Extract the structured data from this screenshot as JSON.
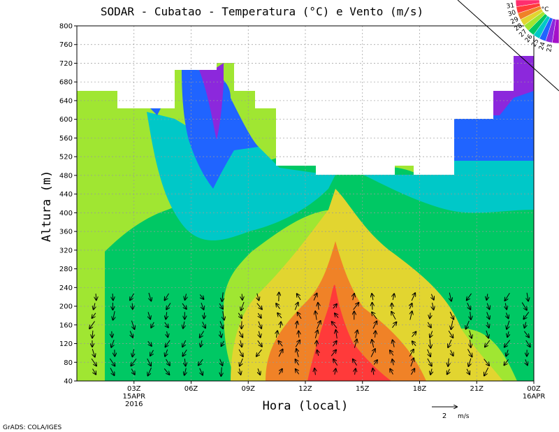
{
  "chart_data": {
    "type": "heatmap",
    "title": "SODAR - Cubatao - Temperatura (°C) e Vento (m/s)",
    "xlabel": "Hora (local)",
    "ylabel": "Altura (m)",
    "ylim": [
      40,
      800
    ],
    "xlim_hours": [
      0,
      24
    ],
    "y_ticks": [
      40,
      80,
      120,
      160,
      200,
      240,
      280,
      320,
      360,
      400,
      440,
      480,
      520,
      560,
      600,
      640,
      680,
      720,
      760,
      800
    ],
    "x_ticks": [
      {
        "hour": 3,
        "label": "03Z",
        "sub1": "15APR",
        "sub2": "2016"
      },
      {
        "hour": 6,
        "label": "06Z"
      },
      {
        "hour": 9,
        "label": "09Z"
      },
      {
        "hour": 12,
        "label": "12Z"
      },
      {
        "hour": 15,
        "label": "15Z"
      },
      {
        "hour": 18,
        "label": "18Z"
      },
      {
        "hour": 21,
        "label": "21Z"
      },
      {
        "hour": 24,
        "label": "00Z",
        "sub1": "16APR"
      }
    ],
    "grid": true,
    "colorbar": {
      "position": "top-right",
      "unit": "°C",
      "levels": [
        31,
        30,
        29,
        28,
        27,
        26,
        25,
        24,
        23
      ],
      "colors": [
        "#ff2d6e",
        "#ff3a3a",
        "#f08227",
        "#e2d530",
        "#a0e632",
        "#00c864",
        "#00c8c8",
        "#2064ff",
        "#8c28dc",
        "#a50fc8"
      ]
    },
    "vector_scale": {
      "value": 2,
      "unit": "m/s"
    },
    "credit": "GrADS: COLA/IGES",
    "vector_columns_hours": [
      0.9,
      1.9,
      2.9,
      3.9,
      4.8,
      5.6,
      6.6,
      7.6,
      8.6,
      9.6,
      10.6,
      11.6,
      12.6,
      13.6,
      14.6,
      15.6,
      16.6,
      17.6,
      18.6,
      19.6,
      20.6,
      21.6,
      22.6,
      23.6
    ],
    "vector_rows_m": [
      60,
      80,
      100,
      120,
      140,
      160,
      180,
      200,
      220
    ]
  }
}
